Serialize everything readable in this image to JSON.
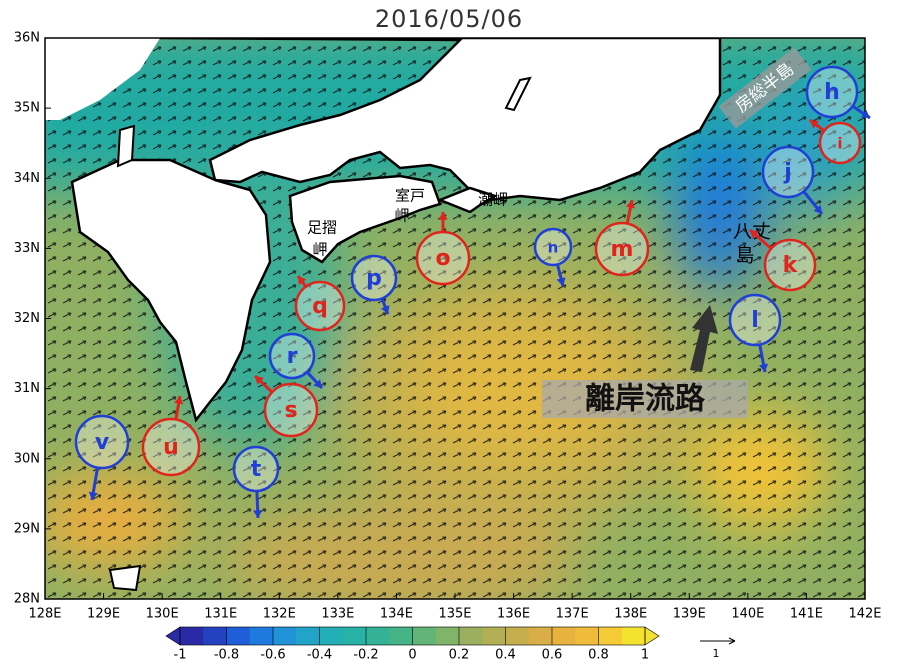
{
  "title": "2016/05/06",
  "map": {
    "xlim": [
      128,
      142
    ],
    "ylim": [
      28,
      36
    ],
    "xticks": [
      {
        "value": 128,
        "label": "128E"
      },
      {
        "value": 129,
        "label": "129E"
      },
      {
        "value": 130,
        "label": "130E"
      },
      {
        "value": 131,
        "label": "131E"
      },
      {
        "value": 132,
        "label": "132E"
      },
      {
        "value": 133,
        "label": "133E"
      },
      {
        "value": 134,
        "label": "134E"
      },
      {
        "value": 135,
        "label": "135E"
      },
      {
        "value": 136,
        "label": "136E"
      },
      {
        "value": 137,
        "label": "137E"
      },
      {
        "value": 138,
        "label": "138E"
      },
      {
        "value": 139,
        "label": "139E"
      },
      {
        "value": 140,
        "label": "140E"
      },
      {
        "value": 141,
        "label": "141E"
      },
      {
        "value": 142,
        "label": "142E"
      }
    ],
    "yticks": [
      {
        "value": 28,
        "label": "28N"
      },
      {
        "value": 29,
        "label": "29N"
      },
      {
        "value": 30,
        "label": "30N"
      },
      {
        "value": 31,
        "label": "31N"
      },
      {
        "value": 32,
        "label": "32N"
      },
      {
        "value": 33,
        "label": "33N"
      },
      {
        "value": 34,
        "label": "34N"
      },
      {
        "value": 35,
        "label": "35N"
      },
      {
        "value": 36,
        "label": "36N"
      }
    ]
  },
  "colorbar": {
    "lim": [
      -1,
      1
    ],
    "ticks": [
      -1,
      -0.8,
      -0.6,
      -0.4,
      -0.2,
      0,
      0.2,
      0.4,
      0.6,
      0.8,
      1
    ],
    "colors": [
      "#2b2aa6",
      "#2242c2",
      "#1e5ed8",
      "#1f7ae0",
      "#2192d8",
      "#22a4c8",
      "#22afb6",
      "#28b2a6",
      "#33b296",
      "#46b386",
      "#62b576",
      "#80b468",
      "#9ab05e",
      "#b1ae56",
      "#c6ad4e",
      "#d9ae46",
      "#e8b23e",
      "#f0ba3a",
      "#f4cb36",
      "#f4e230"
    ]
  },
  "vector_reference": 1,
  "place_labels": {
    "boso": "房総半島",
    "muroto": [
      "室戸",
      "岬"
    ],
    "ashizuri": [
      "足摺",
      "岬"
    ],
    "shiono": "潮岬",
    "hachijo": [
      "八丈",
      "島"
    ],
    "offshore_path": "離岸流路"
  },
  "markers": [
    {
      "label": "h",
      "color": "#1f3fd6"
    },
    {
      "label": "i",
      "color": "#e0241c"
    },
    {
      "label": "j",
      "color": "#1f3fd6"
    },
    {
      "label": "k",
      "color": "#e0241c"
    },
    {
      "label": "l",
      "color": "#1f3fd6"
    },
    {
      "label": "m",
      "color": "#e0241c"
    },
    {
      "label": "n",
      "color": "#1f3fd6"
    },
    {
      "label": "o",
      "color": "#e0241c"
    },
    {
      "label": "p",
      "color": "#1f3fd6"
    },
    {
      "label": "q",
      "color": "#e0241c"
    },
    {
      "label": "r",
      "color": "#1f3fd6"
    },
    {
      "label": "s",
      "color": "#e0241c"
    },
    {
      "label": "t",
      "color": "#1f3fd6"
    },
    {
      "label": "u",
      "color": "#e0241c"
    },
    {
      "label": "v",
      "color": "#1f3fd6"
    }
  ]
}
